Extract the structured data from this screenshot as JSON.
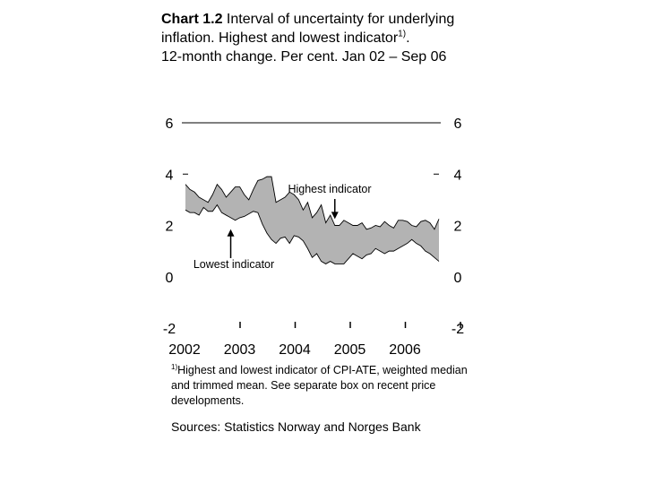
{
  "header": {
    "chart_number": "Chart 1.2",
    "title_text": " Interval of uncertainty for underlying inflation. Highest and lowest indicator",
    "title_footnote_mark": "1)",
    "title_suffix": ".",
    "subtitle": "12-month change. Per cent. Jan 02 – Sep 06"
  },
  "footnote": {
    "mark": "1)",
    "text": "Highest and lowest indicator of CPI-ATE, weighted median and trimmed mean. See separate box on recent price developments."
  },
  "sources": "Sources: Statistics Norway and Norges Bank",
  "chart_data": {
    "type": "area",
    "title": "Interval of uncertainty for underlying inflation. Highest and lowest indicator",
    "subtitle": "12-month change. Per cent. Jan 02 – Sep 06",
    "xlabel": "",
    "ylabel": "",
    "ylim": [
      -2,
      6
    ],
    "yticks": [
      -2,
      0,
      2,
      4,
      6
    ],
    "y_tick_labels": [
      "-2",
      "0",
      "2",
      "4",
      "6"
    ],
    "x_tick_labels": [
      "2002",
      "2003",
      "2004",
      "2005",
      "2006"
    ],
    "x_start": "2002-01",
    "x_end": "2006-09",
    "grid": false,
    "fill_color": "#b3b3b3",
    "annotations": [
      {
        "text": "Highest indicator",
        "x": "2004-10",
        "y": 2.25
      },
      {
        "text": "Lowest indicator",
        "x": "2002-11",
        "y": 1.85
      }
    ],
    "x": [
      "2002-01",
      "2002-02",
      "2002-03",
      "2002-04",
      "2002-05",
      "2002-06",
      "2002-07",
      "2002-08",
      "2002-09",
      "2002-10",
      "2002-11",
      "2002-12",
      "2003-01",
      "2003-02",
      "2003-03",
      "2003-04",
      "2003-05",
      "2003-06",
      "2003-07",
      "2003-08",
      "2003-09",
      "2003-10",
      "2003-11",
      "2003-12",
      "2004-01",
      "2004-02",
      "2004-03",
      "2004-04",
      "2004-05",
      "2004-06",
      "2004-07",
      "2004-08",
      "2004-09",
      "2004-10",
      "2004-11",
      "2004-12",
      "2005-01",
      "2005-02",
      "2005-03",
      "2005-04",
      "2005-05",
      "2005-06",
      "2005-07",
      "2005-08",
      "2005-09",
      "2005-10",
      "2005-11",
      "2005-12",
      "2006-01",
      "2006-02",
      "2006-03",
      "2006-04",
      "2006-05",
      "2006-06",
      "2006-07",
      "2006-08",
      "2006-09"
    ],
    "series": [
      {
        "name": "Highest indicator",
        "values": [
          3.6,
          3.4,
          3.3,
          3.1,
          3.0,
          2.9,
          3.2,
          3.6,
          3.4,
          3.1,
          3.3,
          3.5,
          3.5,
          3.2,
          3.0,
          3.4,
          3.75,
          3.8,
          3.9,
          3.9,
          2.9,
          3.0,
          3.1,
          3.3,
          3.2,
          3.0,
          2.6,
          2.9,
          2.3,
          2.5,
          2.8,
          2.1,
          2.4,
          2.0,
          2.0,
          2.2,
          2.1,
          2.0,
          2.0,
          2.1,
          1.85,
          1.9,
          2.0,
          1.95,
          2.15,
          2.0,
          1.9,
          2.2,
          2.2,
          2.15,
          2.0,
          1.95,
          2.15,
          2.2,
          2.1,
          1.85,
          2.25
        ]
      },
      {
        "name": "Lowest indicator",
        "values": [
          2.6,
          2.5,
          2.5,
          2.4,
          2.7,
          2.55,
          2.55,
          2.8,
          2.5,
          2.4,
          2.3,
          2.2,
          2.3,
          2.35,
          2.45,
          2.55,
          2.5,
          2.05,
          1.7,
          1.45,
          1.3,
          1.5,
          1.55,
          1.3,
          1.6,
          1.55,
          1.4,
          1.1,
          0.75,
          0.9,
          0.6,
          0.5,
          0.6,
          0.5,
          0.5,
          0.5,
          0.7,
          0.9,
          0.8,
          0.7,
          0.85,
          0.9,
          1.1,
          1.0,
          0.9,
          1.0,
          1.0,
          1.1,
          1.2,
          1.3,
          1.45,
          1.3,
          1.2,
          1.0,
          0.9,
          0.75,
          0.6
        ]
      }
    ]
  }
}
